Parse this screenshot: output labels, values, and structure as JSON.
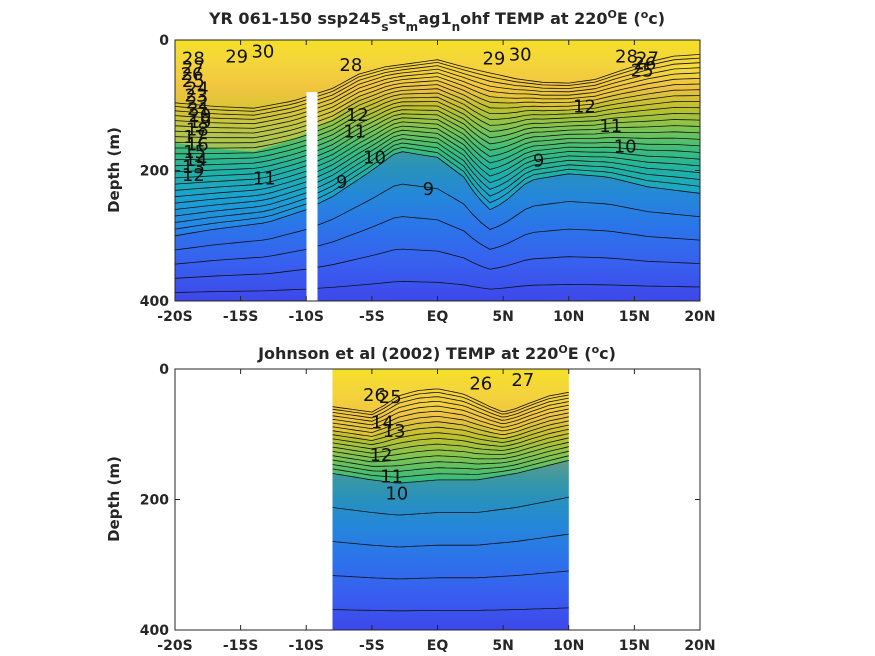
{
  "chart_data": [
    {
      "type": "contour",
      "title": {
        "main": "YR 061-150 ssp245",
        "s1": "s",
        "p1": "st",
        "s2": "m",
        "p2": "ag1",
        "s3": "n",
        "p3": "ohf TEMP at 220",
        "deg1": "O",
        "p4": "E (",
        "deg2": "o",
        "p5": "c)"
      },
      "xlabel": "",
      "ylabel": "Depth (m)",
      "xlim": [
        -20,
        20
      ],
      "ylim": [
        400,
        0
      ],
      "x_ticks": [
        {
          "v": -20,
          "label": "-20S"
        },
        {
          "v": -15,
          "label": "-15S"
        },
        {
          "v": -10,
          "label": "-10S"
        },
        {
          "v": -5,
          "label": "-5S"
        },
        {
          "v": 0,
          "label": "EQ"
        },
        {
          "v": 5,
          "label": "5N"
        },
        {
          "v": 10,
          "label": "10N"
        },
        {
          "v": 15,
          "label": "15N"
        },
        {
          "v": 20,
          "label": "20N"
        }
      ],
      "y_ticks": [
        {
          "v": 0,
          "label": "0"
        },
        {
          "v": 200,
          "label": "200"
        },
        {
          "v": 400,
          "label": "400"
        }
      ],
      "data_extent": [
        -20,
        20
      ],
      "gap_lat": -9.6,
      "gap_top_depth": 80,
      "thermocline_depth": [
        [
          -20,
          175
        ],
        [
          -17,
          185
        ],
        [
          -14,
          190
        ],
        [
          -11,
          170
        ],
        [
          -8,
          135
        ],
        [
          -6,
          95
        ],
        [
          -4,
          75
        ],
        [
          -2,
          65
        ],
        [
          0,
          55
        ],
        [
          2,
          75
        ],
        [
          4,
          92
        ],
        [
          6,
          108
        ],
        [
          8,
          118
        ],
        [
          10,
          120
        ],
        [
          12,
          110
        ],
        [
          14,
          85
        ],
        [
          16,
          62
        ],
        [
          18,
          45
        ],
        [
          20,
          40
        ]
      ],
      "isotherms_base_depth": [
        [
          -20,
          300
        ],
        [
          -17,
          290
        ],
        [
          -13,
          280
        ],
        [
          -10,
          260
        ],
        [
          -8,
          240
        ],
        [
          -5,
          200
        ],
        [
          -3,
          170
        ],
        [
          0,
          180
        ],
        [
          2,
          210
        ],
        [
          3,
          240
        ],
        [
          4,
          260
        ],
        [
          5,
          250
        ],
        [
          7,
          215
        ],
        [
          10,
          205
        ],
        [
          13,
          210
        ],
        [
          16,
          225
        ],
        [
          20,
          235
        ]
      ],
      "contour_labels": [
        {
          "value": "28",
          "x": -18.6,
          "y": 28
        },
        {
          "value": "29",
          "x": -15.3,
          "y": 25
        },
        {
          "value": "30",
          "x": -13.3,
          "y": 18
        },
        {
          "value": "28",
          "x": -6.6,
          "y": 38
        },
        {
          "value": "29",
          "x": 4.3,
          "y": 28
        },
        {
          "value": "30",
          "x": 6.3,
          "y": 22
        },
        {
          "value": "28",
          "x": 14.4,
          "y": 25
        },
        {
          "value": "27",
          "x": 16.0,
          "y": 28
        },
        {
          "value": "26",
          "x": 15.8,
          "y": 36
        },
        {
          "value": "25",
          "x": 15.6,
          "y": 47
        },
        {
          "value": "27",
          "x": -18.6,
          "y": 42
        },
        {
          "value": "26",
          "x": -18.7,
          "y": 52
        },
        {
          "value": "25",
          "x": -18.6,
          "y": 63
        },
        {
          "value": "24",
          "x": -18.3,
          "y": 74
        },
        {
          "value": "23",
          "x": -18.4,
          "y": 85
        },
        {
          "value": "22",
          "x": -18.3,
          "y": 96
        },
        {
          "value": "21",
          "x": -18.2,
          "y": 106
        },
        {
          "value": "20",
          "x": -18.1,
          "y": 116
        },
        {
          "value": "19",
          "x": -18.1,
          "y": 126
        },
        {
          "value": "18",
          "x": -18.3,
          "y": 137
        },
        {
          "value": "17",
          "x": -18.5,
          "y": 149
        },
        {
          "value": "16",
          "x": -18.3,
          "y": 160
        },
        {
          "value": "15",
          "x": -18.5,
          "y": 172
        },
        {
          "value": "14",
          "x": -18.4,
          "y": 184
        },
        {
          "value": "13",
          "x": -18.6,
          "y": 195
        },
        {
          "value": "12",
          "x": -18.6,
          "y": 207
        },
        {
          "value": "11",
          "x": -13.2,
          "y": 212
        },
        {
          "value": "12",
          "x": -6.1,
          "y": 115
        },
        {
          "value": "11",
          "x": -6.3,
          "y": 140
        },
        {
          "value": "10",
          "x": -4.8,
          "y": 180
        },
        {
          "value": "9",
          "x": -7.3,
          "y": 218
        },
        {
          "value": "9",
          "x": -0.7,
          "y": 228
        },
        {
          "value": "12",
          "x": 11.2,
          "y": 102
        },
        {
          "value": "11",
          "x": 13.2,
          "y": 132
        },
        {
          "value": "10",
          "x": 14.3,
          "y": 163
        },
        {
          "value": "9",
          "x": 7.7,
          "y": 185
        }
      ]
    },
    {
      "type": "contour",
      "title": {
        "main": "Johnson et al (2002) TEMP at 220",
        "deg1": "O",
        "p4": "E (",
        "deg2": "o",
        "p5": "c)"
      },
      "xlabel": "",
      "ylabel": "Depth (m)",
      "xlim": [
        -20,
        20
      ],
      "ylim": [
        400,
        0
      ],
      "x_ticks": [
        {
          "v": -20,
          "label": "-20S"
        },
        {
          "v": -15,
          "label": "-15S"
        },
        {
          "v": -10,
          "label": "-10S"
        },
        {
          "v": -5,
          "label": "-5S"
        },
        {
          "v": 0,
          "label": "EQ"
        },
        {
          "v": 5,
          "label": "5N"
        },
        {
          "v": 10,
          "label": "10N"
        },
        {
          "v": 15,
          "label": "15N"
        },
        {
          "v": 20,
          "label": "20N"
        }
      ],
      "y_ticks": [
        {
          "v": 0,
          "label": "0"
        },
        {
          "v": 200,
          "label": "200"
        },
        {
          "v": 400,
          "label": "400"
        }
      ],
      "data_extent": [
        -8,
        10
      ],
      "thermocline_depth": [
        [
          -8,
          105
        ],
        [
          -6,
          115
        ],
        [
          -5,
          120
        ],
        [
          -4,
          100
        ],
        [
          -3,
          75
        ],
        [
          -1.5,
          60
        ],
        [
          0,
          55
        ],
        [
          2,
          70
        ],
        [
          4,
          105
        ],
        [
          5,
          120
        ],
        [
          6,
          110
        ],
        [
          7,
          95
        ],
        [
          8.5,
          75
        ],
        [
          10,
          65
        ]
      ],
      "isotherms_base_depth": [
        [
          -8,
          160
        ],
        [
          -5,
          170
        ],
        [
          -3,
          175
        ],
        [
          0,
          170
        ],
        [
          3,
          170
        ],
        [
          6,
          160
        ],
        [
          8,
          150
        ],
        [
          10,
          140
        ]
      ],
      "contour_labels": [
        {
          "value": "26",
          "x": -4.8,
          "y": 40
        },
        {
          "value": "27",
          "x": 6.5,
          "y": 17
        },
        {
          "value": "26",
          "x": 3.3,
          "y": 22
        },
        {
          "value": "25",
          "x": -3.6,
          "y": 43
        },
        {
          "value": "14",
          "x": -4.2,
          "y": 82
        },
        {
          "value": "13",
          "x": -3.3,
          "y": 95
        },
        {
          "value": "12",
          "x": -4.3,
          "y": 132
        },
        {
          "value": "11",
          "x": -3.5,
          "y": 165
        },
        {
          "value": "10",
          "x": -3.1,
          "y": 191
        }
      ]
    }
  ]
}
